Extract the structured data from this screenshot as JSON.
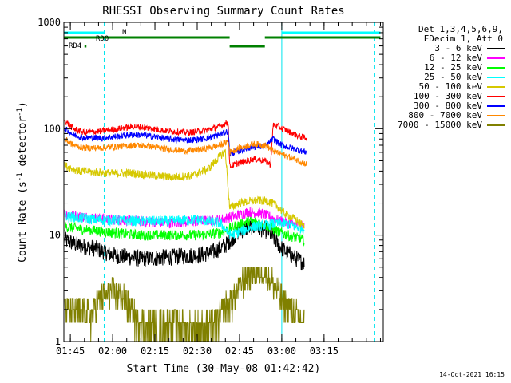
{
  "chart_data": {
    "type": "line",
    "title": "RHESSI Observing Summary Count Rates",
    "xlabel": "Start Time (30-May-08 01:42:42)",
    "ylabel_parts": [
      "Count Rate (s",
      "-1",
      " detector",
      "-1",
      ")"
    ],
    "y_scale": "log",
    "ylim": [
      1,
      1000
    ],
    "y_ticks": [
      {
        "value": 1,
        "label": "1"
      },
      {
        "value": 10,
        "label": "10"
      },
      {
        "value": 100,
        "label": "100"
      },
      {
        "value": 1000,
        "label": "1000"
      }
    ],
    "x_start": "01:42:42",
    "x_range_min": [
      102.7,
      216
    ],
    "x_ticks": [
      {
        "min": 105,
        "label": "01:45"
      },
      {
        "min": 120,
        "label": "02:00"
      },
      {
        "min": 135,
        "label": "02:15"
      },
      {
        "min": 150,
        "label": "02:30"
      },
      {
        "min": 165,
        "label": "02:45"
      },
      {
        "min": 180,
        "label": "03:00"
      },
      {
        "min": 195,
        "label": "03:15"
      }
    ],
    "detector_info": [
      "Det 1,3,4,5,6,9,",
      "FDecim 1, Att 0"
    ],
    "series": [
      {
        "name": "3 - 6 keV",
        "color": "#000000",
        "points": [
          [
            103,
            9
          ],
          [
            108,
            8
          ],
          [
            114,
            7.5
          ],
          [
            120,
            6.5
          ],
          [
            130,
            6
          ],
          [
            140,
            6.2
          ],
          [
            150,
            6.5
          ],
          [
            155,
            6.8
          ],
          [
            160,
            8
          ],
          [
            165,
            11
          ],
          [
            170,
            12
          ],
          [
            175,
            11
          ],
          [
            180,
            7.5
          ],
          [
            185,
            6
          ],
          [
            188,
            5.5
          ]
        ]
      },
      {
        "name": "6 - 12 keV",
        "color": "#ff00ff",
        "points": [
          [
            103,
            16
          ],
          [
            108,
            15
          ],
          [
            114,
            14.5
          ],
          [
            120,
            14
          ],
          [
            130,
            13.5
          ],
          [
            140,
            13
          ],
          [
            150,
            13.5
          ],
          [
            158,
            14
          ],
          [
            163,
            15
          ],
          [
            168,
            16.5
          ],
          [
            173,
            16
          ],
          [
            178,
            14
          ],
          [
            182,
            13
          ],
          [
            188,
            12
          ]
        ]
      },
      {
        "name": "12 - 25 keV",
        "color": "#00ff00",
        "points": [
          [
            103,
            12
          ],
          [
            108,
            11.5
          ],
          [
            114,
            11
          ],
          [
            120,
            10.5
          ],
          [
            130,
            10
          ],
          [
            140,
            10
          ],
          [
            150,
            10
          ],
          [
            158,
            10.5
          ],
          [
            163,
            12
          ],
          [
            168,
            13.5
          ],
          [
            173,
            13
          ],
          [
            178,
            11
          ],
          [
            182,
            10
          ],
          [
            188,
            9
          ]
        ]
      },
      {
        "name": "25 - 50 keV",
        "color": "#00ffff",
        "points": [
          [
            103,
            15
          ],
          [
            108,
            14.5
          ],
          [
            114,
            14
          ],
          [
            120,
            13.8
          ],
          [
            130,
            13.5
          ],
          [
            140,
            13.5
          ],
          [
            150,
            14
          ],
          [
            158,
            13
          ],
          [
            162,
            10
          ],
          [
            166,
            11
          ],
          [
            170,
            12
          ],
          [
            175,
            12.5
          ],
          [
            180,
            13
          ],
          [
            185,
            12
          ],
          [
            188,
            11.5
          ]
        ]
      },
      {
        "name": "50 - 100 keV",
        "color": "#d6c800",
        "points": [
          [
            103,
            45
          ],
          [
            108,
            40
          ],
          [
            114,
            39
          ],
          [
            120,
            38
          ],
          [
            126,
            38.5
          ],
          [
            132,
            37
          ],
          [
            140,
            35
          ],
          [
            148,
            36
          ],
          [
            154,
            42
          ],
          [
            158,
            55
          ],
          [
            160,
            62
          ],
          [
            161.5,
            18
          ],
          [
            165,
            20
          ],
          [
            170,
            21
          ],
          [
            175,
            21
          ],
          [
            178,
            19
          ],
          [
            181,
            16
          ],
          [
            185,
            14
          ],
          [
            188,
            12
          ]
        ]
      },
      {
        "name": "100 - 300 keV",
        "color": "#ff0000",
        "points": [
          [
            103,
            120
          ],
          [
            106,
            100
          ],
          [
            110,
            92
          ],
          [
            116,
            95
          ],
          [
            122,
            100
          ],
          [
            128,
            105
          ],
          [
            134,
            100
          ],
          [
            140,
            95
          ],
          [
            146,
            92
          ],
          [
            152,
            95
          ],
          [
            158,
            105
          ],
          [
            161,
            115
          ],
          [
            161.5,
            44
          ],
          [
            165,
            48
          ],
          [
            170,
            52
          ],
          [
            174,
            50
          ],
          [
            176,
            46
          ],
          [
            177,
            110
          ],
          [
            182,
            95
          ],
          [
            186,
            85
          ],
          [
            189,
            82
          ]
        ]
      },
      {
        "name": "300 - 800 keV",
        "color": "#0000ff",
        "points": [
          [
            103,
            100
          ],
          [
            106,
            88
          ],
          [
            110,
            82
          ],
          [
            116,
            82
          ],
          [
            122,
            85
          ],
          [
            128,
            88
          ],
          [
            134,
            85
          ],
          [
            140,
            80
          ],
          [
            146,
            78
          ],
          [
            152,
            80
          ],
          [
            158,
            88
          ],
          [
            161,
            95
          ],
          [
            161.5,
            58
          ],
          [
            165,
            62
          ],
          [
            170,
            68
          ],
          [
            174,
            68
          ],
          [
            177,
            80
          ],
          [
            180,
            70
          ],
          [
            185,
            64
          ],
          [
            189,
            60
          ]
        ]
      },
      {
        "name": "800 - 7000 keV",
        "color": "#ff8800",
        "points": [
          [
            103,
            80
          ],
          [
            106,
            70
          ],
          [
            110,
            66
          ],
          [
            116,
            66
          ],
          [
            122,
            68
          ],
          [
            128,
            70
          ],
          [
            134,
            68
          ],
          [
            140,
            64
          ],
          [
            146,
            62
          ],
          [
            152,
            64
          ],
          [
            158,
            70
          ],
          [
            161,
            76
          ],
          [
            161.5,
            60
          ],
          [
            165,
            66
          ],
          [
            170,
            72
          ],
          [
            174,
            70
          ],
          [
            177,
            62
          ],
          [
            182,
            55
          ],
          [
            186,
            50
          ],
          [
            189,
            46
          ]
        ]
      },
      {
        "name": "7000 - 15000 keV",
        "color": "#808000",
        "points": [
          [
            103,
            2
          ],
          [
            108,
            1.8
          ],
          [
            112,
            1.6
          ],
          [
            116,
            2.5
          ],
          [
            120,
            2.8
          ],
          [
            124,
            2.5
          ],
          [
            128,
            1.6
          ],
          [
            132,
            1.3
          ],
          [
            136,
            1.4
          ],
          [
            140,
            1.5
          ],
          [
            144,
            1.4
          ],
          [
            148,
            1.3
          ],
          [
            152,
            1.3
          ],
          [
            156,
            1.4
          ],
          [
            160,
            2
          ],
          [
            163,
            2.5
          ],
          [
            166,
            3.5
          ],
          [
            170,
            4.5
          ],
          [
            174,
            4.5
          ],
          [
            178,
            3
          ],
          [
            182,
            2
          ],
          [
            186,
            1.6
          ],
          [
            188,
            1.5
          ]
        ]
      }
    ],
    "flag_bars": [
      {
        "label": "N",
        "color": "#00ffff",
        "intervals": [
          [
            102.7,
            117
          ],
          [
            180,
            215
          ]
        ]
      },
      {
        "label": "RD0",
        "color": "#008000",
        "intervals": [
          [
            102.7,
            161.5
          ],
          [
            174,
            215
          ]
        ]
      },
      {
        "label": "",
        "color": "#008000",
        "intervals": [
          [
            161.5,
            174
          ]
        ]
      },
      {
        "label": "RD4",
        "color": "#008000",
        "intervals": [
          [
            110,
            110.7
          ]
        ]
      }
    ],
    "vertical_markers": [
      {
        "min": 102.7,
        "style": "solid"
      },
      {
        "min": 117,
        "style": "dashed"
      },
      {
        "min": 180,
        "style": "solid"
      },
      {
        "min": 213,
        "style": "dashed"
      }
    ],
    "grid": false,
    "legend_position": "right"
  },
  "footer": {
    "timestamp": "14-Oct-2021 16:15"
  }
}
